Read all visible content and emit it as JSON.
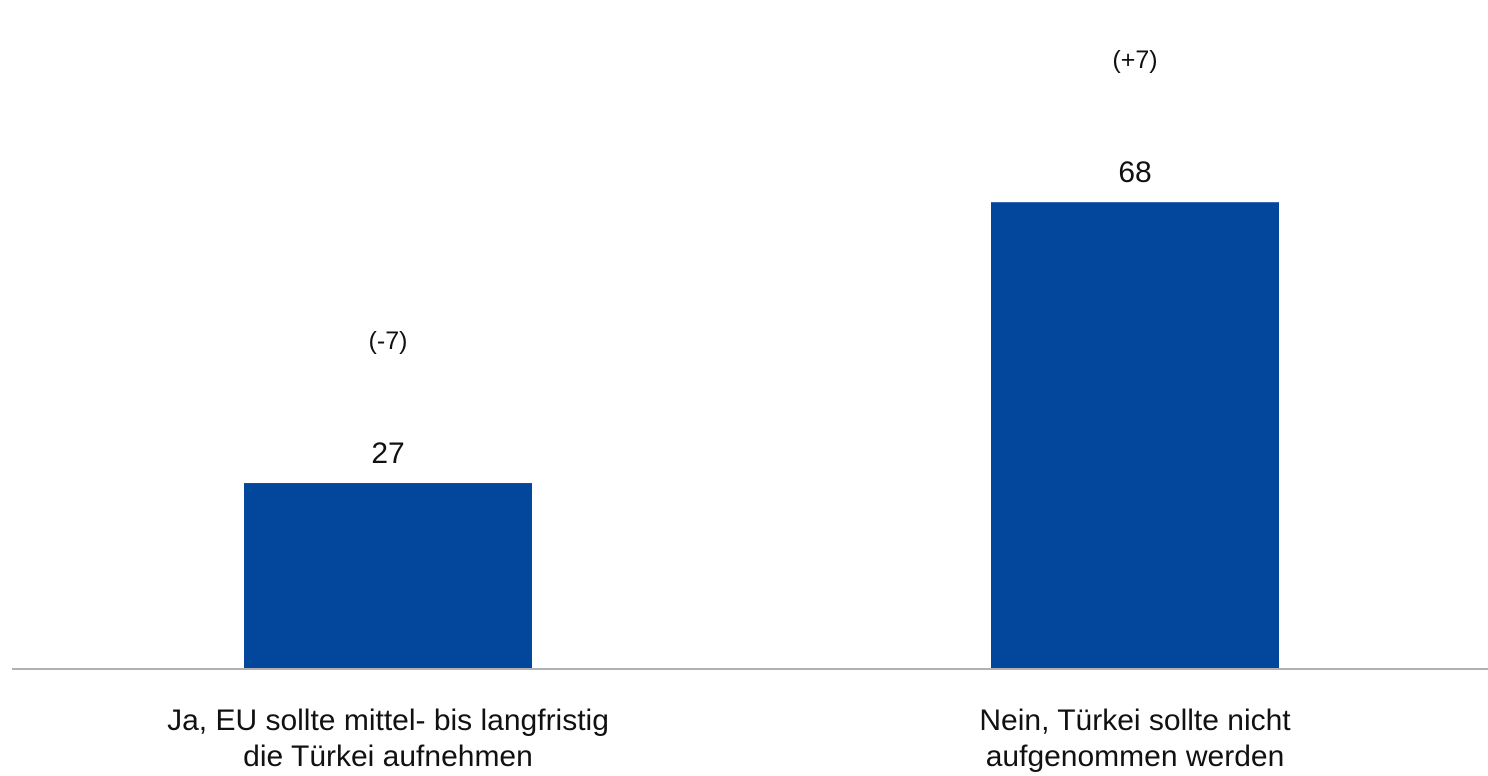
{
  "chart_data": {
    "type": "bar",
    "categories": [
      [
        "Ja, EU sollte mittel- bis langfristig",
        "die Türkei aufnehmen"
      ],
      [
        "Nein, Türkei sollte nicht",
        "aufgenommen werden"
      ]
    ],
    "values": [
      27,
      68
    ],
    "changes": [
      "(-7)",
      "(+7)"
    ],
    "title": "",
    "xlabel": "",
    "ylabel": "",
    "ylim": [
      0,
      80
    ],
    "grid": false,
    "legend": "none",
    "colors": {
      "bar": "#03479C",
      "axis": "#b0b0b0",
      "text": "#111111"
    }
  }
}
